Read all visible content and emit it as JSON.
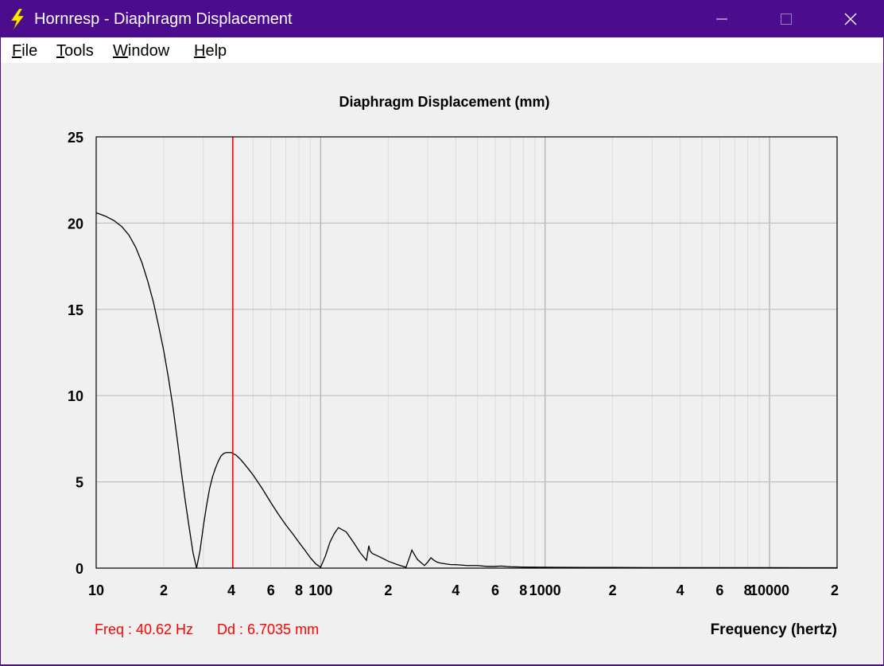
{
  "window": {
    "title": "Hornresp - Diaphragm Displacement",
    "icon": "lightning-bolt-icon",
    "controls": [
      "minimize-icon",
      "maximize-icon",
      "close-icon"
    ]
  },
  "menu": {
    "file": {
      "first": "F",
      "rest": "ile"
    },
    "tools": {
      "first": "T",
      "rest": "ools"
    },
    "window": {
      "first": "W",
      "rest": "indow"
    },
    "help": {
      "first": "H",
      "rest": "elp"
    }
  },
  "readout": {
    "freq": "Freq : 40.62 Hz",
    "dd": "Dd : 6.7035 mm"
  },
  "colors": {
    "titlebar": "#4b0c8e",
    "curve": "#000000",
    "marker": "#ff0000",
    "grid": "#c8c8c8"
  },
  "chart_data": {
    "type": "line",
    "title": "Diaphragm Displacement (mm)",
    "xlabel": "Frequency (hertz)",
    "ylabel": "",
    "xscale": "log",
    "xlim": [
      10,
      20000
    ],
    "ylim": [
      0,
      25
    ],
    "grid": true,
    "y_ticks": [
      "0",
      "5",
      "10",
      "15",
      "20",
      "25"
    ],
    "x_ticks": [
      {
        "v": 10,
        "label": "10"
      },
      {
        "v": 20,
        "label": "2"
      },
      {
        "v": 40,
        "label": "4"
      },
      {
        "v": 60,
        "label": "6"
      },
      {
        "v": 80,
        "label": "8"
      },
      {
        "v": 100,
        "label": "100"
      },
      {
        "v": 200,
        "label": "2"
      },
      {
        "v": 400,
        "label": "4"
      },
      {
        "v": 600,
        "label": "6"
      },
      {
        "v": 800,
        "label": "8"
      },
      {
        "v": 1000,
        "label": "1000"
      },
      {
        "v": 2000,
        "label": "2"
      },
      {
        "v": 4000,
        "label": "4"
      },
      {
        "v": 6000,
        "label": "6"
      },
      {
        "v": 8000,
        "label": "8"
      },
      {
        "v": 10000,
        "label": "10000"
      },
      {
        "v": 20000,
        "label": "2"
      }
    ],
    "marker": {
      "x": 40.62,
      "y": 6.7035
    },
    "series": [
      {
        "x": [
          10,
          11,
          12,
          13,
          14,
          15,
          16,
          17,
          18,
          19,
          20,
          21,
          22,
          23,
          24,
          25,
          26,
          27,
          28,
          29,
          30,
          31,
          32,
          33,
          34,
          35,
          36,
          37,
          38,
          40,
          42,
          44,
          46,
          48,
          50,
          55,
          60,
          65,
          70,
          75,
          80,
          85,
          90,
          95,
          100,
          105,
          110,
          115,
          120,
          130,
          140,
          150,
          160,
          164,
          166,
          170,
          180,
          190,
          200,
          220,
          240,
          250,
          255,
          260,
          270,
          290,
          300,
          310,
          320,
          330,
          340,
          360,
          380,
          400,
          450,
          500,
          550,
          600,
          640,
          700,
          800,
          1000,
          1500,
          2000,
          3000,
          5000,
          10000,
          20000
        ],
        "y": [
          20.6,
          20.4,
          20.15,
          19.8,
          19.3,
          18.6,
          17.7,
          16.6,
          15.4,
          14.0,
          12.6,
          11.0,
          9.3,
          7.4,
          5.5,
          3.8,
          2.3,
          0.9,
          0.0,
          1.0,
          2.4,
          3.6,
          4.6,
          5.3,
          5.8,
          6.2,
          6.5,
          6.65,
          6.7,
          6.7,
          6.55,
          6.3,
          6.0,
          5.7,
          5.4,
          4.6,
          3.8,
          3.1,
          2.5,
          2.0,
          1.5,
          1.05,
          0.6,
          0.25,
          0.05,
          0.7,
          1.5,
          2.0,
          2.35,
          2.1,
          1.5,
          0.9,
          0.45,
          1.3,
          1.0,
          0.85,
          0.7,
          0.55,
          0.4,
          0.2,
          0.05,
          0.7,
          1.05,
          0.85,
          0.5,
          0.15,
          0.35,
          0.6,
          0.45,
          0.35,
          0.3,
          0.25,
          0.2,
          0.2,
          0.15,
          0.15,
          0.1,
          0.1,
          0.12,
          0.08,
          0.06,
          0.05,
          0.04,
          0.04,
          0.03,
          0.03,
          0.03,
          0.02
        ]
      }
    ]
  }
}
